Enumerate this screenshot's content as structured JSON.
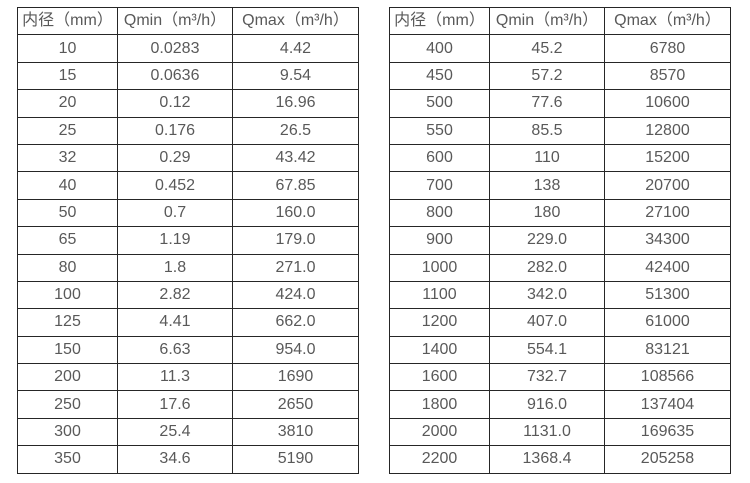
{
  "colors": {
    "background": "#ffffff",
    "border": "#262626",
    "text": "#595959"
  },
  "tables": [
    {
      "name": "small-diameter-flow-table",
      "headers": [
        "内径（mm）",
        "Qmin（m³/h）",
        "Qmax（m³/h）"
      ],
      "rows": [
        [
          "10",
          "0.0283",
          "4.42"
        ],
        [
          "15",
          "0.0636",
          "9.54"
        ],
        [
          "20",
          "0.12",
          "16.96"
        ],
        [
          "25",
          "0.176",
          "26.5"
        ],
        [
          "32",
          "0.29",
          "43.42"
        ],
        [
          "40",
          "0.452",
          "67.85"
        ],
        [
          "50",
          "0.7",
          "160.0"
        ],
        [
          "65",
          "1.19",
          "179.0"
        ],
        [
          "80",
          "1.8",
          "271.0"
        ],
        [
          "100",
          "2.82",
          "424.0"
        ],
        [
          "125",
          "4.41",
          "662.0"
        ],
        [
          "150",
          "6.63",
          "954.0"
        ],
        [
          "200",
          "11.3",
          "1690"
        ],
        [
          "250",
          "17.6",
          "2650"
        ],
        [
          "300",
          "25.4",
          "3810"
        ],
        [
          "350",
          "34.6",
          "5190"
        ]
      ]
    },
    {
      "name": "large-diameter-flow-table",
      "headers": [
        "内径（mm）",
        "Qmin（m³/h）",
        "Qmax（m³/h）"
      ],
      "rows": [
        [
          "400",
          "45.2",
          "6780"
        ],
        [
          "450",
          "57.2",
          "8570"
        ],
        [
          "500",
          "77.6",
          "10600"
        ],
        [
          "550",
          "85.5",
          "12800"
        ],
        [
          "600",
          "110",
          "15200"
        ],
        [
          "700",
          "138",
          "20700"
        ],
        [
          "800",
          "180",
          "27100"
        ],
        [
          "900",
          "229.0",
          "34300"
        ],
        [
          "1000",
          "282.0",
          "42400"
        ],
        [
          "1100",
          "342.0",
          "51300"
        ],
        [
          "1200",
          "407.0",
          "61000"
        ],
        [
          "1400",
          "554.1",
          "83121"
        ],
        [
          "1600",
          "732.7",
          "108566"
        ],
        [
          "1800",
          "916.0",
          "137404"
        ],
        [
          "2000",
          "1131.0",
          "169635"
        ],
        [
          "2200",
          "1368.4",
          "205258"
        ]
      ]
    }
  ]
}
